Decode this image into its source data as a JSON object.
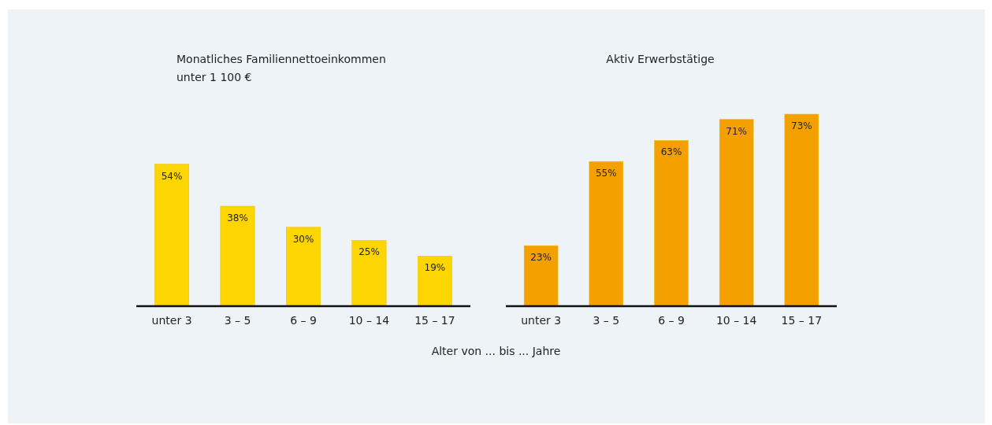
{
  "chart_data": [
    {
      "type": "bar",
      "title": "Monatliches Familiennettoeinkommen\nunter 1 100 €",
      "xlabel": "Alter von ... bis ... Jahre",
      "categories": [
        "unter 3",
        "3 – 5",
        "6 – 9",
        "10 – 14",
        "15 – 17"
      ],
      "values": [
        54,
        38,
        30,
        25,
        19
      ],
      "value_labels": [
        "54%",
        "38%",
        "30%",
        "25%",
        "19%"
      ],
      "color": "#fdd500",
      "tick_labels": "x"
    },
    {
      "type": "bar",
      "title": "Aktiv Erwerbstätige",
      "categories": [
        "unter 3",
        "3 – 5",
        "6 – 9",
        "10 – 14",
        "15 – 17"
      ],
      "values": [
        23,
        55,
        63,
        71,
        73
      ],
      "value_labels": [
        "23%",
        "55%",
        "63%",
        "71%",
        "73%"
      ],
      "color": "#f4a000",
      "tick_labels": "x"
    }
  ]
}
